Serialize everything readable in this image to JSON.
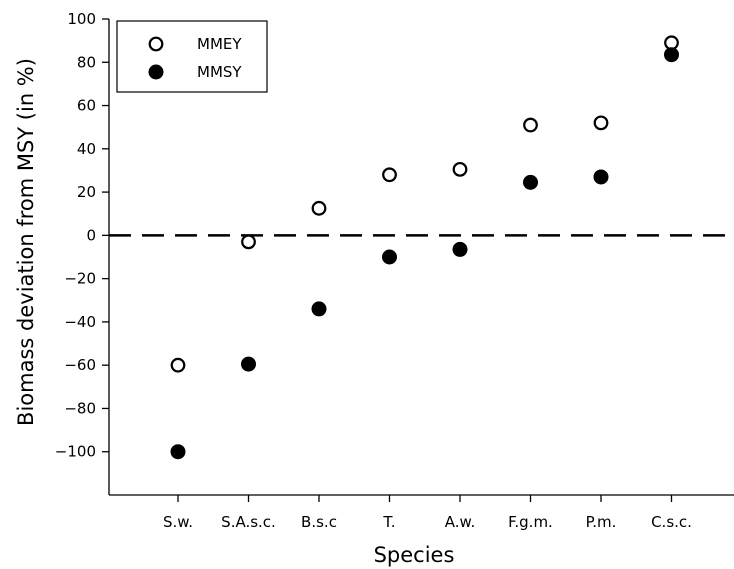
{
  "chart_data": {
    "type": "scatter",
    "xlabel": "Species",
    "ylabel": "Biomass deviation from MSY (in %)",
    "categories": [
      "S.w.",
      "S.A.s.c.",
      "B.s.c",
      "T.",
      "A.w.",
      "F.g.m.",
      "P.m.",
      "C.s.c."
    ],
    "series": [
      {
        "name": "MMEY",
        "marker": "open-circle",
        "values": [
          -60,
          -3,
          12.5,
          28,
          30.5,
          51,
          52,
          89
        ]
      },
      {
        "name": "MMSY",
        "marker": "filled-circle",
        "values": [
          -100,
          -59.5,
          -34,
          -10,
          -6.5,
          24.5,
          27,
          83.5
        ]
      }
    ],
    "ylim": [
      -120,
      100
    ],
    "yticks": [
      -100,
      -80,
      -60,
      -40,
      -20,
      0,
      20,
      40,
      60,
      80,
      100
    ],
    "reference_line": {
      "y": 0,
      "style": "dashed"
    },
    "legend": "top-left",
    "grid": false
  }
}
